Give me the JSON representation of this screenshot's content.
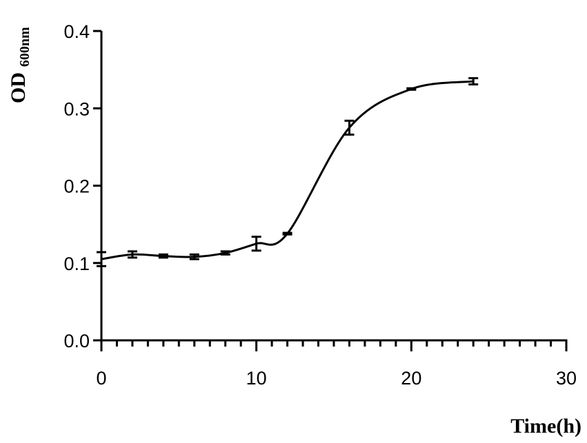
{
  "chart_data": {
    "type": "line",
    "y_label": "OD",
    "y_label_subscript": "600nm",
    "x_label": "Time(h)",
    "x": [
      0,
      2,
      4,
      6,
      8,
      10,
      12,
      16,
      20,
      24
    ],
    "series": [
      {
        "color": "#000000",
        "values": [
          0.105,
          0.111,
          0.109,
          0.108,
          0.113,
          0.125,
          0.138,
          0.275,
          0.325,
          0.335
        ],
        "errors": [
          0.009,
          0.004,
          0.002,
          0.003,
          0.002,
          0.009,
          0.001,
          0.009,
          0.001,
          0.004
        ]
      }
    ],
    "xlim": [
      0,
      30
    ],
    "xticks": [
      0,
      10,
      20,
      30
    ],
    "xminorticks": [
      1,
      2,
      3,
      4,
      5,
      6,
      7,
      8,
      9,
      11,
      12,
      13,
      14,
      15,
      16,
      17,
      18,
      19,
      21,
      22,
      23,
      24,
      25,
      26,
      27,
      28,
      29
    ],
    "ylim": [
      0,
      0.4
    ],
    "yticks": [
      {
        "value": 0,
        "label": "0.0"
      },
      0.1,
      0.2,
      0.3,
      0.4
    ],
    "grid": false
  }
}
